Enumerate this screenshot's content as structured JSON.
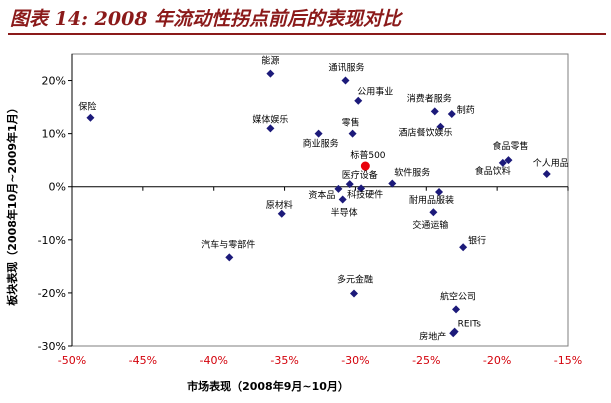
{
  "figure": {
    "title": "图表 14: 2008 年流动性拐点前后的表现对比"
  },
  "chart_data": {
    "type": "scatter",
    "xlabel": "市场表现（2008年9月~10月）",
    "ylabel": "板块表现（2008年10月~2009年1月）",
    "xlim": [
      -50,
      -15
    ],
    "ylim": [
      -30,
      25
    ],
    "x_ticks": [
      -50,
      -45,
      -40,
      -35,
      -30,
      -25,
      -20,
      -15
    ],
    "y_ticks": [
      -30,
      -20,
      -10,
      0,
      10,
      20
    ],
    "x_tick_labels": [
      "-50%",
      "-45%",
      "-40%",
      "-35%",
      "-30%",
      "-25%",
      "-20%",
      "-15%"
    ],
    "y_tick_labels": [
      "-30%",
      "-20%",
      "-10%",
      "0%",
      "10%",
      "20%"
    ],
    "grid": false,
    "marker_color": "#1c1a7a",
    "highlight_color": "#e8000b",
    "points": [
      {
        "label": "保险",
        "x": -48.7,
        "y": 13.0
      },
      {
        "label": "能源",
        "x": -36.0,
        "y": 21.3
      },
      {
        "label": "通讯服务",
        "x": -30.7,
        "y": 20.0
      },
      {
        "label": "公用事业",
        "x": -29.8,
        "y": 16.2
      },
      {
        "label": "媒体娱乐",
        "x": -36.0,
        "y": 11.0
      },
      {
        "label": "商业服务",
        "x": -32.6,
        "y": 10.0
      },
      {
        "label": "零售",
        "x": -30.2,
        "y": 10.0
      },
      {
        "label": "消费者服务",
        "x": -24.4,
        "y": 14.2
      },
      {
        "label": "制药",
        "x": -23.2,
        "y": 13.7
      },
      {
        "label": "酒店餐饮娱乐",
        "x": -24.0,
        "y": 11.3
      },
      {
        "label": "标普500",
        "x": -29.3,
        "y": 3.9,
        "highlight": true
      },
      {
        "label": "食品零售",
        "x": -19.2,
        "y": 5.0
      },
      {
        "label": "食品饮料",
        "x": -19.6,
        "y": 4.5
      },
      {
        "label": "个人用品",
        "x": -16.5,
        "y": 2.4
      },
      {
        "label": "医疗设备",
        "x": -30.4,
        "y": 0.5
      },
      {
        "label": "软件服务",
        "x": -27.4,
        "y": 0.6
      },
      {
        "label": "资本品",
        "x": -31.2,
        "y": -0.4
      },
      {
        "label": "科技硬件",
        "x": -29.6,
        "y": -0.3
      },
      {
        "label": "耐用品服装",
        "x": -24.1,
        "y": -1.0
      },
      {
        "label": "半导体",
        "x": -30.9,
        "y": -2.4
      },
      {
        "label": "原材料",
        "x": -35.2,
        "y": -5.1
      },
      {
        "label": "交通运输",
        "x": -24.5,
        "y": -4.8
      },
      {
        "label": "银行",
        "x": -22.4,
        "y": -11.4
      },
      {
        "label": "汽车与零部件",
        "x": -38.9,
        "y": -13.3
      },
      {
        "label": "多元金融",
        "x": -30.1,
        "y": -20.1
      },
      {
        "label": "航空公司",
        "x": -22.9,
        "y": -23.1
      },
      {
        "label": "REITs",
        "x": -23.0,
        "y": -27.3
      },
      {
        "label": "房地产",
        "x": -23.1,
        "y": -27.6
      }
    ]
  }
}
